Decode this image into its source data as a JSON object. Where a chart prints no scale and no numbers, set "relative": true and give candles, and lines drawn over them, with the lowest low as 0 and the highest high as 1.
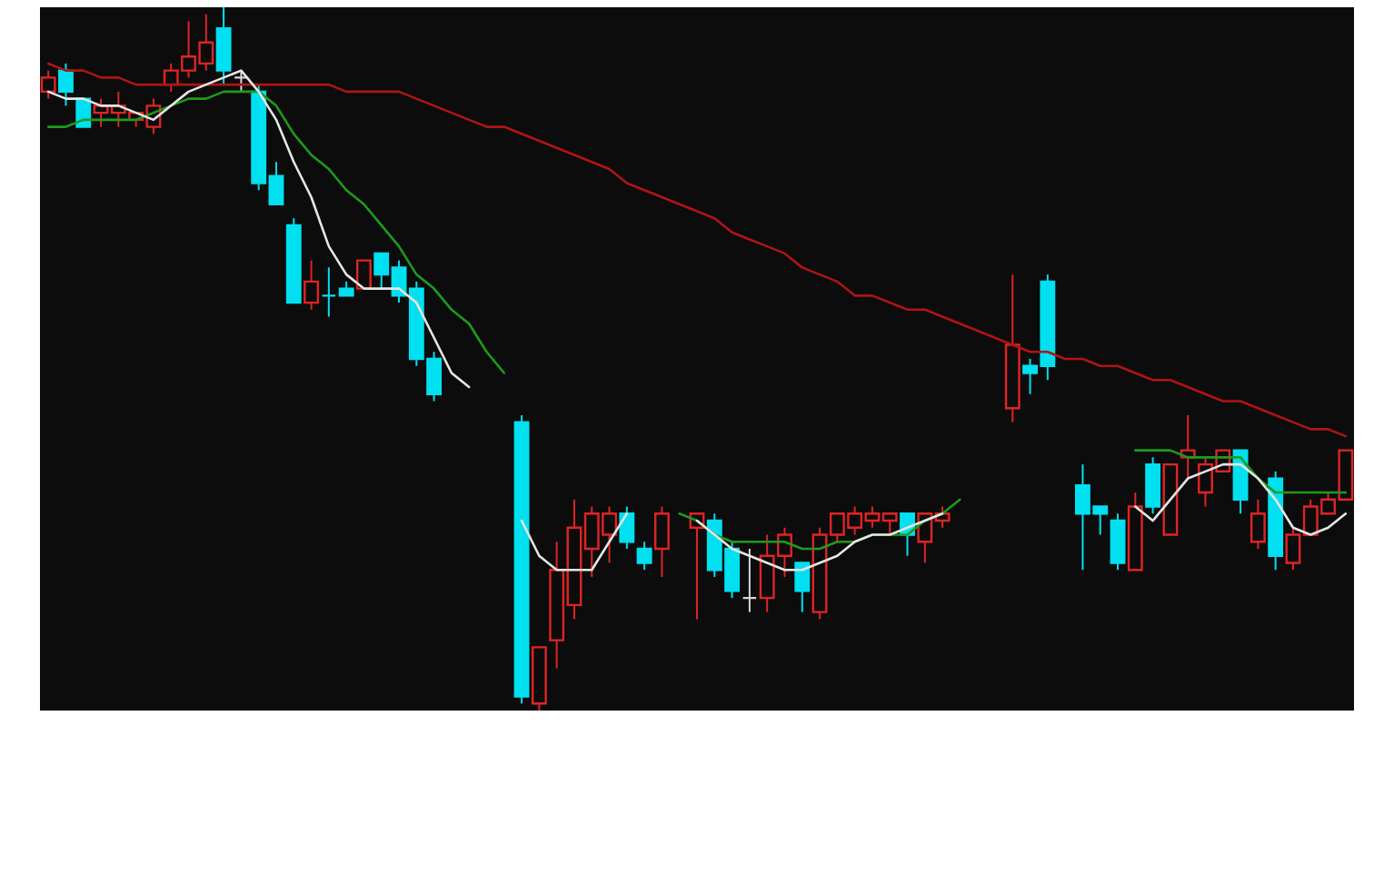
{
  "chart_data": {
    "type": "candlestick",
    "relative": true,
    "categories": [
      null,
      null,
      null,
      null,
      null,
      null,
      null,
      null,
      null,
      null,
      null,
      null,
      null,
      null,
      null,
      null,
      null,
      null,
      null,
      null,
      null,
      null,
      null,
      null,
      null,
      null,
      null,
      null,
      null,
      null,
      null,
      null,
      null,
      null,
      null,
      null,
      null,
      null,
      null,
      null,
      null,
      null,
      null,
      null,
      null,
      null,
      null,
      null,
      null,
      null,
      null,
      null,
      null,
      null,
      null,
      null,
      null,
      null,
      null,
      null,
      null,
      null,
      null,
      null,
      null,
      null,
      null,
      null,
      null,
      null,
      null,
      null,
      null,
      null,
      null
    ],
    "ohlc": [
      [
        0.88,
        0.91,
        0.87,
        0.9
      ],
      [
        0.91,
        0.92,
        0.86,
        0.88
      ],
      [
        0.87,
        0.87,
        0.83,
        0.83
      ],
      [
        0.85,
        0.87,
        0.83,
        0.86
      ],
      [
        0.85,
        0.88,
        0.83,
        0.86
      ],
      [
        0.84,
        0.85,
        0.83,
        0.85
      ],
      [
        0.83,
        0.87,
        0.82,
        0.86
      ],
      [
        0.89,
        0.92,
        0.88,
        0.91
      ],
      [
        0.91,
        0.98,
        0.9,
        0.93
      ],
      [
        0.92,
        0.99,
        0.91,
        0.95
      ],
      [
        0.97,
        1.0,
        0.89,
        0.91
      ],
      [
        0.9,
        0.91,
        0.88,
        0.9
      ],
      [
        0.88,
        0.89,
        0.74,
        0.75
      ],
      [
        0.76,
        0.78,
        0.72,
        0.72
      ],
      [
        0.69,
        0.7,
        0.58,
        0.58
      ],
      [
        0.58,
        0.64,
        0.57,
        0.61
      ],
      [
        0.59,
        0.63,
        0.56,
        0.59
      ],
      [
        0.6,
        0.61,
        0.59,
        0.59
      ],
      [
        0.6,
        0.64,
        0.6,
        0.64
      ],
      [
        0.65,
        0.65,
        0.6,
        0.62
      ],
      [
        0.63,
        0.64,
        0.58,
        0.59
      ],
      [
        0.6,
        0.61,
        0.49,
        0.5
      ],
      [
        0.5,
        0.51,
        0.44,
        0.45
      ],
      null,
      null,
      null,
      null,
      [
        0.41,
        0.42,
        0.01,
        0.02
      ],
      [
        0.01,
        0.09,
        0.0,
        0.09
      ],
      [
        0.1,
        0.24,
        0.06,
        0.2
      ],
      [
        0.15,
        0.3,
        0.13,
        0.26
      ],
      [
        0.23,
        0.29,
        0.19,
        0.28
      ],
      [
        0.25,
        0.29,
        0.21,
        0.28
      ],
      [
        0.28,
        0.29,
        0.23,
        0.24
      ],
      [
        0.23,
        0.24,
        0.2,
        0.21
      ],
      [
        0.23,
        0.29,
        0.19,
        0.28
      ],
      null,
      [
        0.26,
        0.28,
        0.13,
        0.28
      ],
      [
        0.27,
        0.28,
        0.19,
        0.2
      ],
      [
        0.23,
        0.24,
        0.16,
        0.17
      ],
      [
        0.16,
        0.23,
        0.14,
        0.16
      ],
      [
        0.16,
        0.25,
        0.14,
        0.22
      ],
      [
        0.22,
        0.26,
        0.19,
        0.25
      ],
      [
        0.21,
        0.21,
        0.14,
        0.17
      ],
      [
        0.14,
        0.26,
        0.13,
        0.25
      ],
      [
        0.25,
        0.28,
        0.24,
        0.28
      ],
      [
        0.26,
        0.29,
        0.25,
        0.28
      ],
      [
        0.27,
        0.29,
        0.26,
        0.28
      ],
      [
        0.27,
        0.28,
        0.25,
        0.28
      ],
      [
        0.28,
        0.28,
        0.22,
        0.25
      ],
      [
        0.24,
        0.28,
        0.21,
        0.28
      ],
      [
        0.27,
        0.29,
        0.26,
        0.28
      ],
      null,
      null,
      null,
      [
        0.43,
        0.62,
        0.41,
        0.52
      ],
      [
        0.49,
        0.5,
        0.45,
        0.48
      ],
      [
        0.61,
        0.62,
        0.47,
        0.49
      ],
      null,
      [
        0.32,
        0.35,
        0.2,
        0.28
      ],
      [
        0.29,
        0.29,
        0.25,
        0.28
      ],
      [
        0.27,
        0.28,
        0.2,
        0.21
      ],
      [
        0.2,
        0.31,
        0.2,
        0.29
      ],
      [
        0.35,
        0.36,
        0.28,
        0.29
      ],
      [
        0.25,
        0.35,
        0.25,
        0.35
      ],
      [
        0.36,
        0.42,
        0.33,
        0.37
      ],
      [
        0.31,
        0.36,
        0.29,
        0.35
      ],
      [
        0.34,
        0.37,
        0.34,
        0.37
      ],
      [
        0.37,
        0.37,
        0.28,
        0.3
      ],
      [
        0.24,
        0.3,
        0.23,
        0.28
      ],
      [
        0.33,
        0.34,
        0.2,
        0.22
      ],
      [
        0.21,
        0.26,
        0.2,
        0.25
      ],
      [
        0.25,
        0.3,
        0.25,
        0.29
      ],
      [
        0.28,
        0.31,
        0.28,
        0.3
      ],
      [
        0.3,
        0.37,
        0.3,
        0.37
      ]
    ],
    "colors": [
      "#e02424",
      "#00e0f0",
      "#00e0f0",
      "#e02424",
      "#e02424",
      "#e02424",
      "#e02424",
      "#e02424",
      "#e02424",
      "#e02424",
      "#00e0f0",
      "#d8d8d8",
      "#00e0f0",
      "#00e0f0",
      "#00e0f0",
      "#e02424",
      "#00e0f0",
      "#00e0f0",
      "#e02424",
      "#00e0f0",
      "#00e0f0",
      "#00e0f0",
      "#00e0f0",
      null,
      null,
      null,
      null,
      "#00e0f0",
      "#e02424",
      "#e02424",
      "#e02424",
      "#e02424",
      "#e02424",
      "#00e0f0",
      "#00e0f0",
      "#e02424",
      null,
      "#e02424",
      "#00e0f0",
      "#00e0f0",
      "#d8d8d8",
      "#e02424",
      "#e02424",
      "#00e0f0",
      "#e02424",
      "#e02424",
      "#e02424",
      "#e02424",
      "#e02424",
      "#00e0f0",
      "#e02424",
      "#e02424",
      null,
      null,
      null,
      "#e02424",
      "#00e0f0",
      "#00e0f0",
      null,
      "#00e0f0",
      "#00e0f0",
      "#00e0f0",
      "#e02424",
      "#00e0f0",
      "#e02424",
      "#e02424",
      "#e02424",
      "#e02424",
      "#00e0f0",
      "#e02424",
      "#00e0f0",
      "#e02424",
      "#e02424",
      "#e02424",
      "#e02424"
    ],
    "series": [
      {
        "type": "line",
        "color": "#b01414",
        "values": [
          0.92,
          0.91,
          0.91,
          0.9,
          0.9,
          0.89,
          0.89,
          0.89,
          0.89,
          0.89,
          0.89,
          0.89,
          0.89,
          0.89,
          0.89,
          0.89,
          0.89,
          0.88,
          0.88,
          0.88,
          0.88,
          0.87,
          0.86,
          0.85,
          0.84,
          0.83,
          0.83,
          0.82,
          0.81,
          0.8,
          0.79,
          0.78,
          0.77,
          0.75,
          0.74,
          0.73,
          0.72,
          0.71,
          0.7,
          0.68,
          0.67,
          0.66,
          0.65,
          0.63,
          0.62,
          0.61,
          0.59,
          0.59,
          0.58,
          0.57,
          0.57,
          0.56,
          0.55,
          0.54,
          0.53,
          0.52,
          0.51,
          0.51,
          0.5,
          0.5,
          0.49,
          0.49,
          0.48,
          0.47,
          0.47,
          0.46,
          0.45,
          0.44,
          0.44,
          0.43,
          0.42,
          0.41,
          0.4,
          0.4,
          0.39
        ]
      },
      {
        "type": "line",
        "color": "#1c9c1c",
        "values": [
          0.83,
          0.83,
          0.84,
          0.84,
          0.84,
          0.84,
          0.85,
          0.86,
          0.87,
          0.87,
          0.88,
          0.88,
          0.88,
          0.86,
          0.82,
          0.79,
          0.77,
          0.74,
          0.72,
          0.69,
          0.66,
          0.62,
          0.6,
          0.57,
          0.55,
          0.51,
          0.48,
          null,
          null,
          null,
          null,
          null,
          null,
          null,
          null,
          null,
          0.28,
          0.27,
          0.25,
          0.24,
          0.24,
          0.24,
          0.24,
          0.23,
          0.23,
          0.24,
          0.24,
          0.25,
          0.25,
          0.25,
          0.27,
          0.28,
          0.3,
          null,
          null,
          null,
          null,
          null,
          null,
          null,
          null,
          null,
          0.37,
          0.37,
          0.37,
          0.36,
          0.36,
          0.36,
          0.36,
          0.33,
          0.31,
          0.31,
          0.31,
          0.31,
          0.31
        ]
      },
      {
        "type": "line",
        "color": "#e6e6e6",
        "values": [
          0.88,
          0.87,
          0.87,
          0.86,
          0.86,
          0.85,
          0.84,
          0.86,
          0.88,
          0.89,
          0.9,
          0.91,
          0.88,
          0.84,
          0.78,
          0.73,
          0.66,
          0.62,
          0.6,
          0.6,
          0.6,
          0.58,
          0.53,
          0.48,
          0.46,
          null,
          null,
          0.27,
          0.22,
          0.2,
          0.2,
          0.2,
          0.24,
          0.28,
          null,
          null,
          null,
          0.27,
          0.25,
          0.23,
          0.22,
          0.21,
          0.2,
          0.2,
          0.21,
          0.22,
          0.24,
          0.25,
          0.25,
          0.26,
          0.27,
          0.28,
          null,
          null,
          null,
          null,
          null,
          null,
          null,
          null,
          null,
          null,
          0.29,
          0.27,
          0.3,
          0.33,
          0.34,
          0.35,
          0.35,
          0.33,
          0.3,
          0.26,
          0.25,
          0.26,
          0.28
        ]
      }
    ]
  }
}
